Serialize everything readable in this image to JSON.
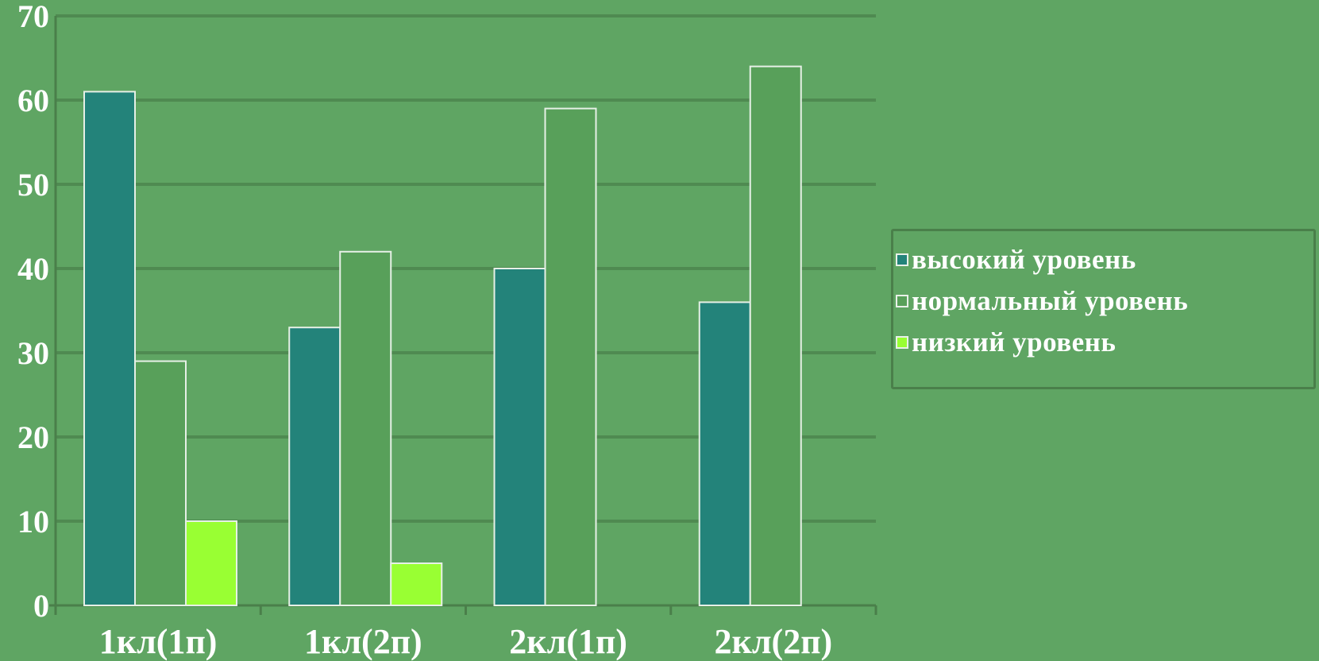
{
  "colors": {
    "background": "#5fa563",
    "gridline": "#4f8a51",
    "axis": "#4a7f4a",
    "bar_outline": "#e6f0e6"
  },
  "chart_data": {
    "type": "bar",
    "categories": [
      "1кл(1п)",
      "1кл(2п)",
      "2кл(1п)",
      "2кл(2п)"
    ],
    "series": [
      {
        "name": "высокий уровень",
        "values": [
          61,
          33,
          40,
          36
        ],
        "color": "#23837a"
      },
      {
        "name": "нормальный уровень",
        "values": [
          29,
          42,
          59,
          64
        ],
        "color": "#58a05a"
      },
      {
        "name": "низкий уровень",
        "values": [
          10,
          5,
          0,
          0
        ],
        "color": "#99ff33"
      }
    ],
    "ylim": [
      0,
      70
    ],
    "yticks": [
      0,
      10,
      20,
      30,
      40,
      50,
      60,
      70
    ],
    "grid": true,
    "legend": "right"
  }
}
